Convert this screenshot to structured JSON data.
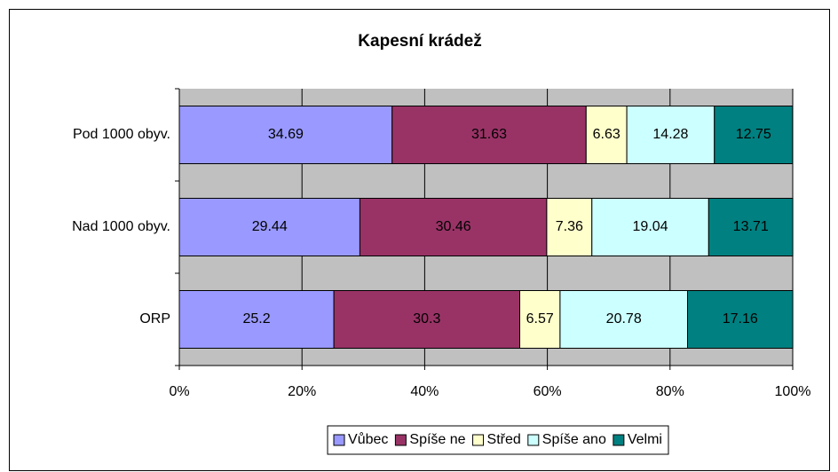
{
  "chart_data": {
    "type": "stacked-bar-horizontal",
    "title": "Kapesní krádež",
    "categories": [
      "Pod 1000 obyv.",
      "Nad 1000 obyv.",
      "ORP"
    ],
    "series": [
      {
        "name": "Vůbec",
        "color": "#9999ff",
        "values": [
          34.69,
          29.44,
          25.2
        ]
      },
      {
        "name": "Spíše ne",
        "color": "#993366",
        "values": [
          31.63,
          30.46,
          30.3
        ]
      },
      {
        "name": "Střed",
        "color": "#ffffcc",
        "values": [
          6.63,
          7.36,
          6.57
        ]
      },
      {
        "name": "Spíše ano",
        "color": "#ccffff",
        "values": [
          14.28,
          19.04,
          20.78
        ]
      },
      {
        "name": "Velmi",
        "color": "#008080",
        "values": [
          12.75,
          13.71,
          17.16
        ]
      }
    ],
    "xlim": [
      0,
      100
    ],
    "xticks": [
      {
        "value": 0,
        "label": "0%"
      },
      {
        "value": 20,
        "label": "20%"
      },
      {
        "value": 40,
        "label": "40%"
      },
      {
        "value": 60,
        "label": "60%"
      },
      {
        "value": 80,
        "label": "80%"
      },
      {
        "value": 100,
        "label": "100%"
      }
    ],
    "grid": true,
    "legend": "bottom"
  }
}
